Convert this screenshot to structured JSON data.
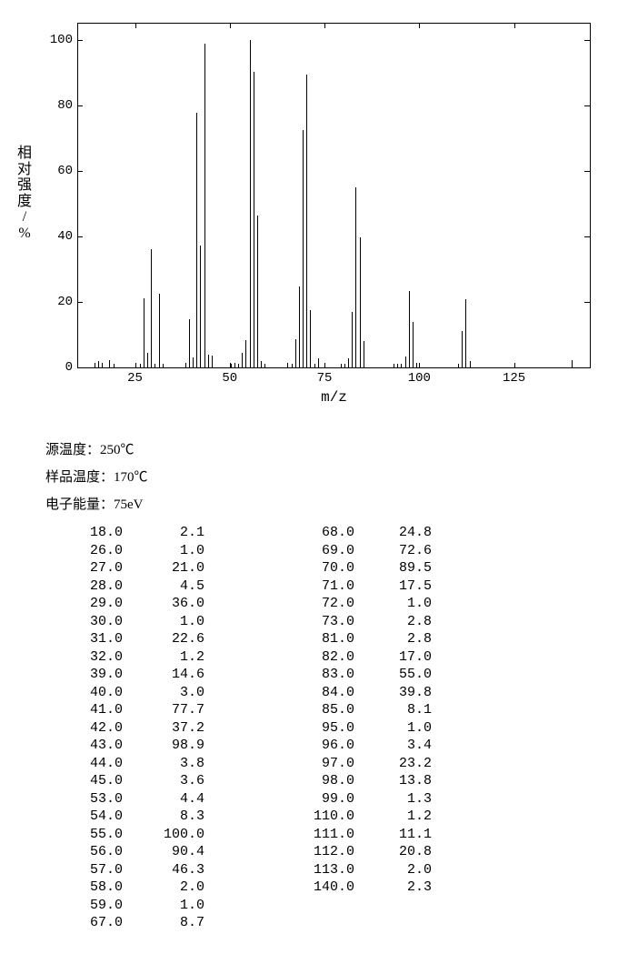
{
  "chart": {
    "type": "mass-spectrum",
    "xlabel": "m/z",
    "ylabel": "相对强度/%",
    "xlim": [
      10,
      145
    ],
    "ylim": [
      0,
      105
    ],
    "xticks": [
      25,
      50,
      75,
      100,
      125
    ],
    "yticks": [
      0,
      20,
      40,
      60,
      80,
      100
    ],
    "bar_color": "#000000",
    "background_color": "#ffffff",
    "axis_color": "#000000",
    "label_fontsize": 16,
    "tick_fontsize": 14,
    "peaks": [
      {
        "mz": 14,
        "i": 1.5
      },
      {
        "mz": 15,
        "i": 2.0
      },
      {
        "mz": 16,
        "i": 1.5
      },
      {
        "mz": 18,
        "i": 2.1
      },
      {
        "mz": 19,
        "i": 1.0
      },
      {
        "mz": 26,
        "i": 1.0
      },
      {
        "mz": 27,
        "i": 21.0
      },
      {
        "mz": 28,
        "i": 4.5
      },
      {
        "mz": 29,
        "i": 36.0
      },
      {
        "mz": 30,
        "i": 1.0
      },
      {
        "mz": 31,
        "i": 22.6
      },
      {
        "mz": 32,
        "i": 1.2
      },
      {
        "mz": 38,
        "i": 1.5
      },
      {
        "mz": 39,
        "i": 14.6
      },
      {
        "mz": 40,
        "i": 3.0
      },
      {
        "mz": 41,
        "i": 77.7
      },
      {
        "mz": 42,
        "i": 37.2
      },
      {
        "mz": 43,
        "i": 98.9
      },
      {
        "mz": 44,
        "i": 3.8
      },
      {
        "mz": 45,
        "i": 3.6
      },
      {
        "mz": 50,
        "i": 1.0
      },
      {
        "mz": 51,
        "i": 1.5
      },
      {
        "mz": 52,
        "i": 1.0
      },
      {
        "mz": 53,
        "i": 4.4
      },
      {
        "mz": 54,
        "i": 8.3
      },
      {
        "mz": 55,
        "i": 100.0
      },
      {
        "mz": 56,
        "i": 90.4
      },
      {
        "mz": 57,
        "i": 46.3
      },
      {
        "mz": 58,
        "i": 2.0
      },
      {
        "mz": 59,
        "i": 1.0
      },
      {
        "mz": 65,
        "i": 1.5
      },
      {
        "mz": 66,
        "i": 1.0
      },
      {
        "mz": 67,
        "i": 8.7
      },
      {
        "mz": 68,
        "i": 24.8
      },
      {
        "mz": 69,
        "i": 72.6
      },
      {
        "mz": 70,
        "i": 89.5
      },
      {
        "mz": 71,
        "i": 17.5
      },
      {
        "mz": 72,
        "i": 1.0
      },
      {
        "mz": 73,
        "i": 2.8
      },
      {
        "mz": 79,
        "i": 1.0
      },
      {
        "mz": 80,
        "i": 1.0
      },
      {
        "mz": 81,
        "i": 2.8
      },
      {
        "mz": 82,
        "i": 17.0
      },
      {
        "mz": 83,
        "i": 55.0
      },
      {
        "mz": 84,
        "i": 39.8
      },
      {
        "mz": 85,
        "i": 8.1
      },
      {
        "mz": 93,
        "i": 1.0
      },
      {
        "mz": 94,
        "i": 1.0
      },
      {
        "mz": 95,
        "i": 1.0
      },
      {
        "mz": 96,
        "i": 3.4
      },
      {
        "mz": 97,
        "i": 23.2
      },
      {
        "mz": 98,
        "i": 13.8
      },
      {
        "mz": 99,
        "i": 1.3
      },
      {
        "mz": 110,
        "i": 1.2
      },
      {
        "mz": 111,
        "i": 11.1
      },
      {
        "mz": 112,
        "i": 20.8
      },
      {
        "mz": 113,
        "i": 2.0
      },
      {
        "mz": 140,
        "i": 2.3
      }
    ]
  },
  "meta": {
    "source_temp_label": "源温度：",
    "source_temp_value": "250℃",
    "sample_temp_label": "样品温度：",
    "sample_temp_value": "170℃",
    "electron_energy_label": "电子能量：",
    "electron_energy_value": "75eV"
  },
  "table": {
    "left": [
      [
        "18.0",
        "2.1"
      ],
      [
        "26.0",
        "1.0"
      ],
      [
        "27.0",
        "21.0"
      ],
      [
        "28.0",
        "4.5"
      ],
      [
        "29.0",
        "36.0"
      ],
      [
        "30.0",
        "1.0"
      ],
      [
        "31.0",
        "22.6"
      ],
      [
        "32.0",
        "1.2"
      ],
      [
        "39.0",
        "14.6"
      ],
      [
        "40.0",
        "3.0"
      ],
      [
        "41.0",
        "77.7"
      ],
      [
        "42.0",
        "37.2"
      ],
      [
        "43.0",
        "98.9"
      ],
      [
        "44.0",
        "3.8"
      ],
      [
        "45.0",
        "3.6"
      ],
      [
        "53.0",
        "4.4"
      ],
      [
        "54.0",
        "8.3"
      ],
      [
        "55.0",
        "100.0"
      ],
      [
        "56.0",
        "90.4"
      ],
      [
        "57.0",
        "46.3"
      ],
      [
        "58.0",
        "2.0"
      ],
      [
        "59.0",
        "1.0"
      ],
      [
        "67.0",
        "8.7"
      ]
    ],
    "right": [
      [
        "68.0",
        "24.8"
      ],
      [
        "69.0",
        "72.6"
      ],
      [
        "70.0",
        "89.5"
      ],
      [
        "71.0",
        "17.5"
      ],
      [
        "72.0",
        "1.0"
      ],
      [
        "73.0",
        "2.8"
      ],
      [
        "81.0",
        "2.8"
      ],
      [
        "82.0",
        "17.0"
      ],
      [
        "83.0",
        "55.0"
      ],
      [
        "84.0",
        "39.8"
      ],
      [
        "85.0",
        "8.1"
      ],
      [
        "95.0",
        "1.0"
      ],
      [
        "96.0",
        "3.4"
      ],
      [
        "97.0",
        "23.2"
      ],
      [
        "98.0",
        "13.8"
      ],
      [
        "99.0",
        "1.3"
      ],
      [
        "110.0",
        "1.2"
      ],
      [
        "111.0",
        "11.1"
      ],
      [
        "112.0",
        "20.8"
      ],
      [
        "113.0",
        "2.0"
      ],
      [
        "140.0",
        "2.3"
      ]
    ]
  }
}
